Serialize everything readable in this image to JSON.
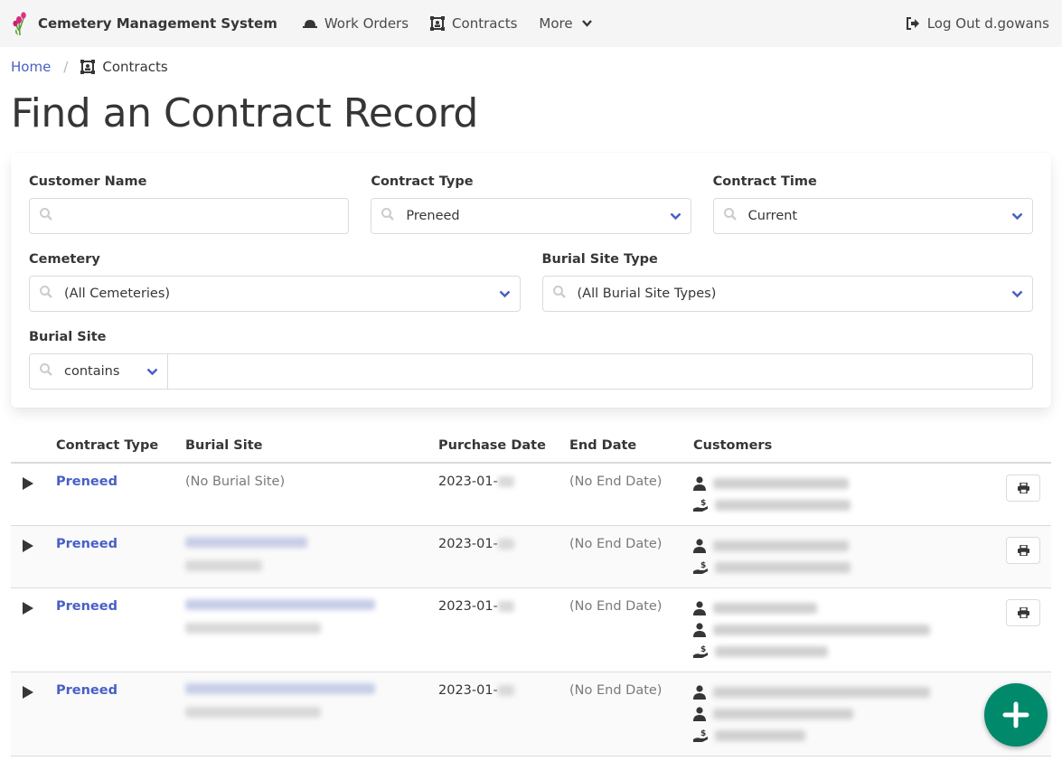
{
  "nav": {
    "brand": "Cemetery Management System",
    "work_orders": "Work Orders",
    "contracts": "Contracts",
    "more": "More",
    "logout": "Log Out d.gowans"
  },
  "breadcrumb": {
    "home": "Home",
    "current": "Contracts"
  },
  "page_title": "Find an Contract Record",
  "filters": {
    "customer_name": {
      "label": "Customer Name",
      "value": ""
    },
    "contract_type": {
      "label": "Contract Type",
      "value": "Preneed"
    },
    "contract_time": {
      "label": "Contract Time",
      "value": "Current"
    },
    "cemetery": {
      "label": "Cemetery",
      "value": "(All Cemeteries)"
    },
    "burial_site_type": {
      "label": "Burial Site Type",
      "value": "(All Burial Site Types)"
    },
    "burial_site": {
      "label": "Burial Site",
      "operator": "contains",
      "value": ""
    }
  },
  "table": {
    "headers": [
      "Contract Type",
      "Burial Site",
      "Purchase Date",
      "End Date",
      "Customers"
    ],
    "rows": [
      {
        "type": "Preneed",
        "burial_site": "(No Burial Site)",
        "purchase_date": "2023-01-",
        "end_date": "(No End Date)"
      },
      {
        "type": "Preneed",
        "burial_site": "",
        "purchase_date": "2023-01-",
        "end_date": "(No End Date)"
      },
      {
        "type": "Preneed",
        "burial_site": "",
        "purchase_date": "2023-01-",
        "end_date": "(No End Date)"
      },
      {
        "type": "Preneed",
        "burial_site": "",
        "purchase_date": "2023-01-",
        "end_date": "(No End Date)"
      }
    ]
  },
  "colors": {
    "accent": "#485fc7",
    "fab": "#00896b"
  }
}
